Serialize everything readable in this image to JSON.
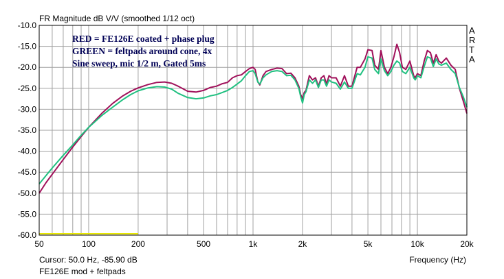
{
  "window": {
    "cursor_readout": "Cursor: 50.0 Hz, -85.90 dB",
    "measurement_name": "FE126E mod + feltpads",
    "side_label": [
      "A",
      "R",
      "T",
      "A"
    ]
  },
  "chart_data": {
    "type": "line",
    "title": "FR Magnitude dB V/V (smoothed 1/12 oct)",
    "xlabel": "Frequency (Hz)",
    "ylabel": "",
    "x_scale": "log",
    "xlim": [
      50,
      20000
    ],
    "ylim": [
      -60,
      -10
    ],
    "grid": true,
    "x_tick_labels": [
      "50",
      "100",
      "200",
      "500",
      "1k",
      "2k",
      "5k",
      "10k",
      "20k"
    ],
    "x_tick_values": [
      50,
      100,
      200,
      500,
      1000,
      2000,
      5000,
      10000,
      20000
    ],
    "y_tick_labels": [
      "-10.0",
      "-15.0",
      "-20.0",
      "-25.0",
      "-30.0",
      "-35.0",
      "-40.0",
      "-45.0",
      "-50.0",
      "-55.0",
      "-60.0"
    ],
    "y_tick_values": [
      -10,
      -15,
      -20,
      -25,
      -30,
      -35,
      -40,
      -45,
      -50,
      -55,
      -60
    ],
    "annotations": [
      "RED = FE126E coated + phase plug",
      "GREEN = feltpads around cone, 4x",
      "Sine sweep, mic 1/2 m, Gated 5ms"
    ],
    "colors": {
      "red": "#a0105a",
      "green": "#20c080",
      "marker": "#e8e800",
      "grid": "#a0a0a0",
      "frame": "#000000"
    },
    "marker_band": {
      "x": [
        50,
        200
      ],
      "y": -60
    },
    "series": [
      {
        "color": "red",
        "x": [
          50,
          55,
          60,
          70,
          80,
          90,
          100,
          120,
          140,
          160,
          180,
          200,
          230,
          260,
          290,
          320,
          350,
          400,
          450,
          500,
          550,
          600,
          650,
          700,
          750,
          800,
          850,
          900,
          950,
          1000,
          1030,
          1070,
          1100,
          1150,
          1200,
          1300,
          1400,
          1500,
          1600,
          1700,
          1800,
          1900,
          1950,
          2000,
          2050,
          2100,
          2200,
          2300,
          2400,
          2500,
          2600,
          2700,
          2800,
          2900,
          3000,
          3200,
          3400,
          3600,
          3800,
          4000,
          4300,
          4500,
          4800,
          5000,
          5300,
          5500,
          5800,
          6000,
          6300,
          6600,
          6900,
          7200,
          7500,
          7800,
          8100,
          8500,
          9000,
          9500,
          9700,
          10000,
          10500,
          11000,
          11500,
          12000,
          12500,
          13000,
          13500,
          14000,
          15000,
          16000,
          17000,
          18000,
          19000,
          20000
        ],
        "y": [
          -50.0,
          -47.5,
          -45.5,
          -42.0,
          -39.0,
          -36.5,
          -34.3,
          -31.0,
          -28.6,
          -26.9,
          -25.7,
          -24.9,
          -24.1,
          -23.6,
          -23.5,
          -23.8,
          -24.5,
          -25.7,
          -25.9,
          -25.5,
          -24.8,
          -24.5,
          -23.9,
          -23.6,
          -22.5,
          -22.0,
          -21.8,
          -21.0,
          -20.3,
          -20.0,
          -20.5,
          -23.5,
          -24.2,
          -22.0,
          -21.0,
          -20.5,
          -20.2,
          -20.3,
          -21.5,
          -21.4,
          -22.5,
          -24.5,
          -26.5,
          -27.5,
          -26.0,
          -25.5,
          -22.0,
          -23.0,
          -22.5,
          -24.5,
          -22.5,
          -22.0,
          -24.0,
          -22.0,
          -22.5,
          -22.5,
          -24.5,
          -22.0,
          -24.5,
          -24.5,
          -20.0,
          -20.0,
          -18.0,
          -15.8,
          -16.0,
          -19.5,
          -20.5,
          -16.0,
          -20.0,
          -21.5,
          -20.0,
          -17.5,
          -14.5,
          -16.5,
          -20.0,
          -20.5,
          -18.5,
          -22.0,
          -22.5,
          -21.5,
          -22.0,
          -18.5,
          -16.0,
          -16.5,
          -19.0,
          -17.0,
          -18.5,
          -19.0,
          -17.8,
          -19.5,
          -20.5,
          -25.0,
          -28.0,
          -31.0
        ]
      },
      {
        "color": "green",
        "x": [
          50,
          55,
          60,
          70,
          80,
          90,
          100,
          120,
          140,
          160,
          180,
          200,
          230,
          260,
          290,
          320,
          350,
          400,
          450,
          500,
          550,
          600,
          650,
          700,
          750,
          800,
          850,
          900,
          950,
          1000,
          1030,
          1070,
          1100,
          1150,
          1200,
          1300,
          1400,
          1500,
          1600,
          1700,
          1800,
          1900,
          1950,
          2000,
          2050,
          2100,
          2200,
          2300,
          2400,
          2500,
          2600,
          2700,
          2800,
          2900,
          3000,
          3200,
          3400,
          3600,
          3800,
          4000,
          4300,
          4500,
          4800,
          5000,
          5300,
          5500,
          5800,
          6000,
          6300,
          6600,
          6900,
          7200,
          7500,
          7800,
          8100,
          8500,
          9000,
          9500,
          9700,
          10000,
          10500,
          11000,
          11500,
          12000,
          12500,
          13000,
          13500,
          14000,
          15000,
          16000,
          17000,
          18000,
          19000,
          20000
        ],
        "y": [
          -47.8,
          -45.8,
          -44.0,
          -41.0,
          -38.5,
          -36.2,
          -34.3,
          -31.5,
          -29.5,
          -27.8,
          -26.5,
          -25.6,
          -24.9,
          -24.6,
          -24.7,
          -25.2,
          -26.2,
          -27.2,
          -27.5,
          -27.3,
          -26.8,
          -26.5,
          -26.0,
          -25.5,
          -24.8,
          -24.0,
          -23.2,
          -22.0,
          -21.0,
          -20.8,
          -21.5,
          -23.5,
          -24.0,
          -22.5,
          -21.8,
          -21.0,
          -20.8,
          -21.0,
          -22.0,
          -21.9,
          -23.0,
          -25.0,
          -27.0,
          -28.5,
          -26.5,
          -25.8,
          -23.0,
          -23.8,
          -23.0,
          -24.8,
          -23.0,
          -23.0,
          -24.5,
          -23.0,
          -23.5,
          -23.8,
          -25.2,
          -23.5,
          -25.0,
          -25.0,
          -21.5,
          -21.8,
          -20.0,
          -17.5,
          -17.8,
          -20.5,
          -21.5,
          -18.0,
          -20.8,
          -22.0,
          -21.0,
          -19.5,
          -18.5,
          -19.0,
          -21.0,
          -21.5,
          -20.0,
          -22.5,
          -23.0,
          -22.0,
          -22.5,
          -19.8,
          -17.5,
          -17.8,
          -19.8,
          -18.0,
          -19.2,
          -19.5,
          -19.0,
          -20.5,
          -21.5,
          -24.8,
          -27.0,
          -29.5
        ]
      }
    ]
  }
}
